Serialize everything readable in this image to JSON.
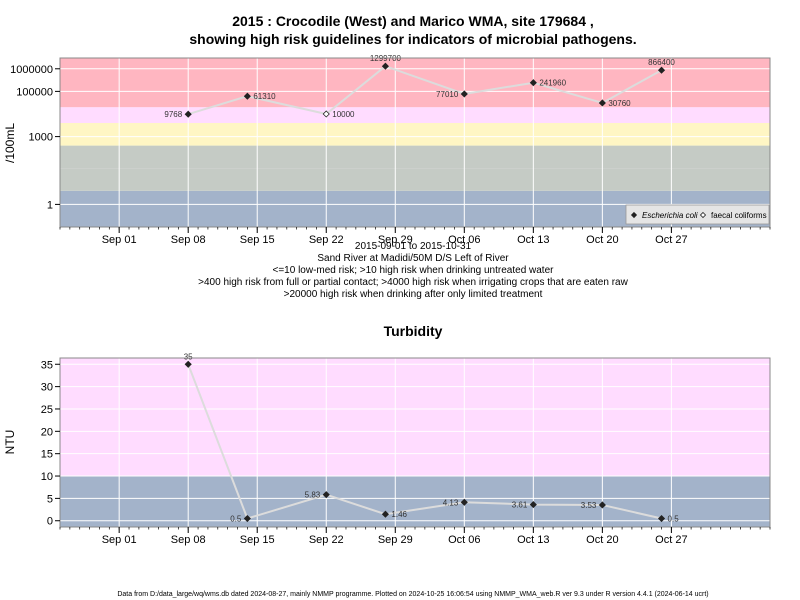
{
  "footer": "Data from D:/data_large/wq/wms.db dated 2024-08-27, mainly NMMP programme. Plotted on 2024-10-25 16:06:54 using NMMP_WMA_web.R ver 9.3 under R version 4.4.1 (2024-06-14 ucrt)",
  "chart_data": [
    {
      "type": "line",
      "title_line1": "2015 : Crocodile (West) and Marico WMA, site 179684 ,",
      "title_line2": "showing high risk guidelines for indicators of microbial pathogens.",
      "ylabel": "/100mL",
      "y_scale": "log10",
      "ylim": [
        0.1,
        3000000
      ],
      "xlim": [
        "2015-08-26",
        "2015-11-06"
      ],
      "x_tick_dates": [
        "2015-09-01",
        "2015-09-08",
        "2015-09-15",
        "2015-09-22",
        "2015-09-29",
        "2015-10-06",
        "2015-10-13",
        "2015-10-20",
        "2015-10-27"
      ],
      "x_tick_labels": [
        "Sep 01",
        "Sep 08",
        "Sep 15",
        "Sep 22",
        "Sep 29",
        "Oct 06",
        "Oct 13",
        "Oct 20",
        "Oct 27"
      ],
      "y_ticks": [
        1,
        1000,
        100000,
        1000000
      ],
      "y_tick_labels": [
        "1",
        "1000",
        "100000",
        "1000000"
      ],
      "grid": true,
      "bands": [
        {
          "from": 0.1,
          "to": 4,
          "color": "#a3b3ca"
        },
        {
          "from": 4,
          "to": 40,
          "color": "#c5cbc5"
        },
        {
          "from": 40,
          "to": 400,
          "color": "#c5cbc5"
        },
        {
          "from": 400,
          "to": 4000,
          "color": "#fff6c4"
        },
        {
          "from": 4000,
          "to": 20000,
          "color": "#ffdcff"
        },
        {
          "from": 20000,
          "to": 3000000,
          "color": "#ffb6c1"
        }
      ],
      "series": [
        {
          "name": "Escherichia coli",
          "marker": "filled-diamond",
          "points": [
            {
              "date": "2015-09-08",
              "value": 9768,
              "label": "9768"
            },
            {
              "date": "2015-09-14",
              "value": 61310,
              "label": "61310"
            },
            {
              "date": "2015-09-28",
              "value": 1299700,
              "label": "1299700"
            },
            {
              "date": "2015-10-06",
              "value": 77010,
              "label": "77010"
            },
            {
              "date": "2015-10-13",
              "value": 241960,
              "label": "241960"
            },
            {
              "date": "2015-10-20",
              "value": 30760,
              "label": "30760"
            },
            {
              "date": "2015-10-26",
              "value": 866400,
              "label": "866400"
            }
          ]
        },
        {
          "name": "faecal coliforms",
          "marker": "open-diamond",
          "points": [
            {
              "date": "2015-09-22",
              "value": 10000,
              "label": "10000"
            }
          ]
        }
      ],
      "legend": "bottom-right",
      "notes": [
        "2015-09-01 to 2015-10-31",
        "Sand River at Madidi/50M D/S Left of River",
        "<=10 low-med risk; >10 high risk when drinking untreated water",
        ">400 high risk from full or partial contact; >4000 high risk when irrigating crops that are eaten raw",
        ">20000 high risk when drinking after only limited treatment"
      ]
    },
    {
      "type": "line",
      "title": "Turbidity",
      "ylabel": "NTU",
      "ylim": [
        -1.4,
        36.4
      ],
      "xlim": [
        "2015-08-26",
        "2015-11-06"
      ],
      "x_tick_dates": [
        "2015-09-01",
        "2015-09-08",
        "2015-09-15",
        "2015-09-22",
        "2015-09-29",
        "2015-10-06",
        "2015-10-13",
        "2015-10-20",
        "2015-10-27"
      ],
      "x_tick_labels": [
        "Sep 01",
        "Sep 08",
        "Sep 15",
        "Sep 22",
        "Sep 29",
        "Oct 06",
        "Oct 13",
        "Oct 20",
        "Oct 27"
      ],
      "y_ticks": [
        0,
        5,
        10,
        15,
        20,
        25,
        30,
        35
      ],
      "y_tick_labels": [
        "0",
        "5",
        "10",
        "15",
        "20",
        "25",
        "30",
        "35"
      ],
      "grid": true,
      "bands": [
        {
          "from": -1.4,
          "to": 10,
          "color": "#a3b3ca"
        },
        {
          "from": 10,
          "to": 36.4,
          "color": "#ffdcff"
        }
      ],
      "series": [
        {
          "name": "",
          "marker": "filled-diamond",
          "points": [
            {
              "date": "2015-09-08",
              "value": 35,
              "label": "35"
            },
            {
              "date": "2015-09-14",
              "value": 0.5,
              "label": "0.5"
            },
            {
              "date": "2015-09-22",
              "value": 5.83,
              "label": "5.83"
            },
            {
              "date": "2015-09-28",
              "value": 1.46,
              "label": "1.46"
            },
            {
              "date": "2015-10-06",
              "value": 4.13,
              "label": "4.13"
            },
            {
              "date": "2015-10-13",
              "value": 3.61,
              "label": "3.61"
            },
            {
              "date": "2015-10-20",
              "value": 3.53,
              "label": "3.53"
            },
            {
              "date": "2015-10-26",
              "value": 0.5,
              "label": "0.5"
            }
          ]
        }
      ]
    }
  ]
}
